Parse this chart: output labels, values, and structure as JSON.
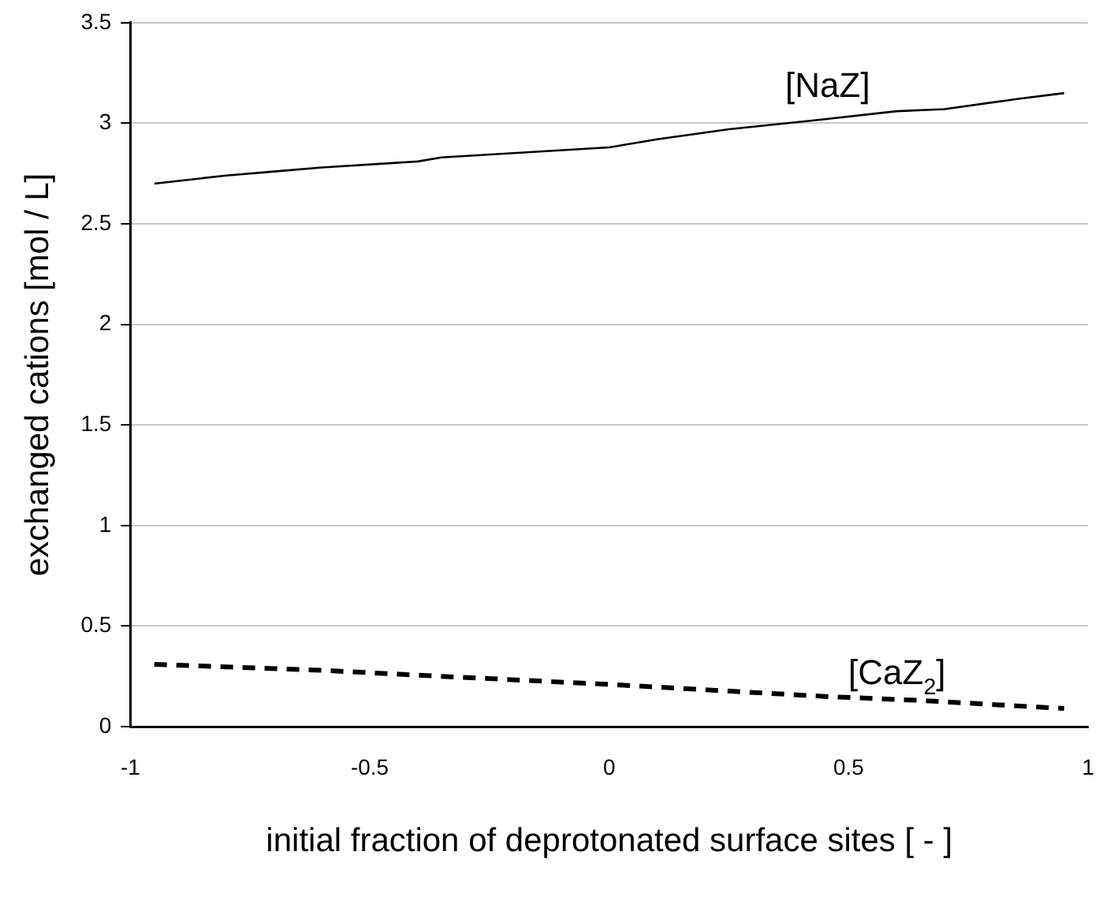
{
  "chart_data": {
    "type": "line",
    "xlabel": "initial fraction of deprotonated surface sites [ - ]",
    "ylabel": "exchanged cations [mol / L]",
    "xlim": [
      -1,
      1
    ],
    "xticks": [
      -1,
      -0.5,
      0,
      0.5,
      1
    ],
    "ylim": [
      0,
      3.5
    ],
    "yticks": [
      0,
      0.5,
      1,
      1.5,
      2,
      2.5,
      3,
      3.5
    ],
    "grid": "y",
    "legend": false,
    "marker": "none",
    "series": [
      {
        "name": "[NaZ]",
        "color": "#000000",
        "line_style": "solid",
        "x": [
          -0.95,
          -0.8,
          -0.7,
          -0.6,
          -0.4,
          -0.35,
          0,
          0.1,
          0.25,
          0.45,
          0.6,
          0.7,
          0.85,
          0.95
        ],
        "values": [
          2.7,
          2.74,
          2.76,
          2.78,
          2.81,
          2.83,
          2.88,
          2.92,
          2.97,
          3.02,
          3.06,
          3.07,
          3.12,
          3.15
        ]
      },
      {
        "name": "[CaZ$_{2}$]",
        "color": "#000000",
        "line_style": "dashed",
        "x": [
          -0.95,
          -0.6,
          -0.35,
          0,
          0.45,
          0.65,
          0.95
        ],
        "values": [
          0.31,
          0.28,
          0.25,
          0.21,
          0.15,
          0.13,
          0.09
        ]
      }
    ]
  }
}
